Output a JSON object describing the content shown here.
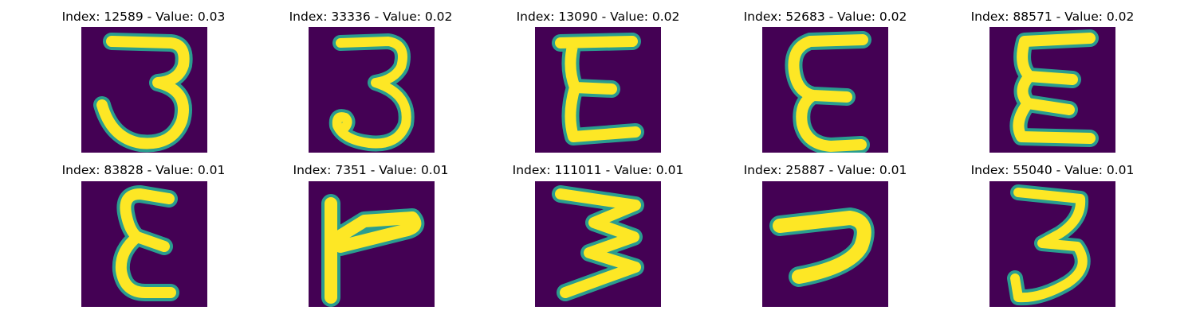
{
  "figure": {
    "colormap": "viridis",
    "background_color": "#440154",
    "stroke_color": "#fde725",
    "edge_color": "#2a9d8f",
    "panels": [
      {
        "title": "Index: 12589 - Value: 0.03",
        "glyph": "3-curly"
      },
      {
        "title": "Index: 33336 - Value: 0.02",
        "glyph": "3-round"
      },
      {
        "title": "Index: 13090 - Value: 0.02",
        "glyph": "E-boxy"
      },
      {
        "title": "Index: 52683 - Value: 0.02",
        "glyph": "E-curved"
      },
      {
        "title": "Index: 88571 - Value: 0.02",
        "glyph": "sigma-like"
      },
      {
        "title": "Index: 83828 - Value: 0.01",
        "glyph": "E-script"
      },
      {
        "title": "Index: 7351 - Value: 0.01",
        "glyph": "L-rotated"
      },
      {
        "title": "Index: 111011 - Value: 0.01",
        "glyph": "3-zigzag"
      },
      {
        "title": "Index: 25887 - Value: 0.01",
        "glyph": "hook"
      },
      {
        "title": "Index: 55040 - Value: 0.01",
        "glyph": "3-hooked"
      }
    ]
  }
}
